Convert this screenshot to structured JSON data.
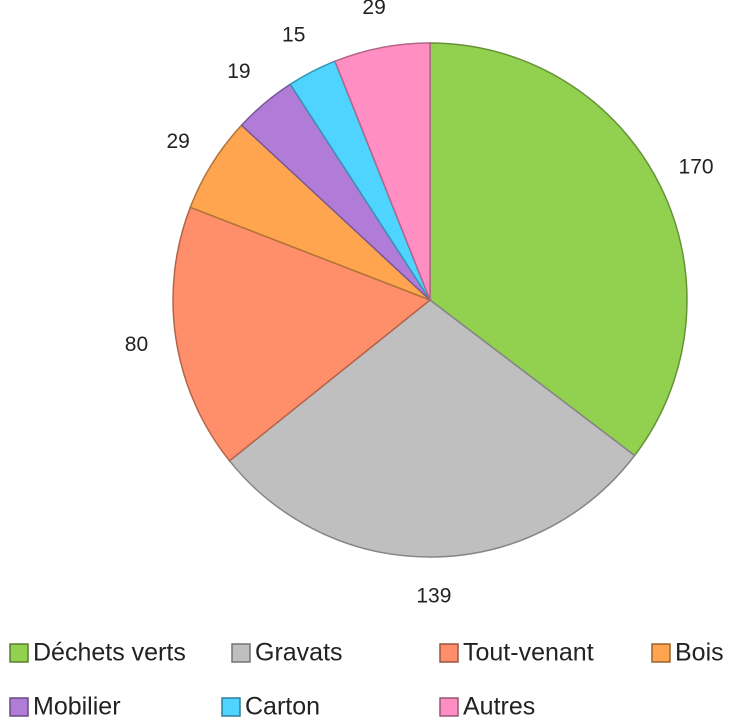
{
  "chart_data": {
    "type": "pie",
    "categories": [
      "Déchets verts",
      "Gravats",
      "Tout-venant",
      "Bois",
      "Mobilier",
      "Carton",
      "Autres"
    ],
    "values": [
      170,
      139,
      80,
      29,
      19,
      15,
      29
    ],
    "colors": [
      "#92d050",
      "#bfbfbf",
      "#ff8f6b",
      "#ffa54f",
      "#b07cd8",
      "#4fd3ff",
      "#ff8fc2"
    ],
    "legend": "bottom"
  }
}
